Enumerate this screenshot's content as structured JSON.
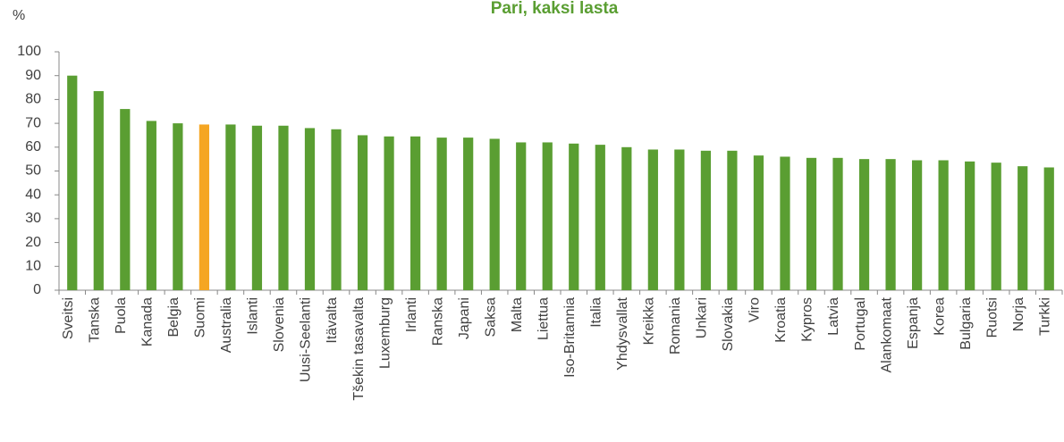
{
  "chart_data": {
    "type": "bar",
    "title": "Pari, kaksi lasta",
    "y_label": "%",
    "categories": [
      "Sveitsi",
      "Tanska",
      "Puola",
      "Kanada",
      "Belgia",
      "Suomi",
      "Australia",
      "Islanti",
      "Slovenia",
      "Uusi-Seelanti",
      "Itävalta",
      "Tšekin tasavalta",
      "Luxemburg",
      "Irlanti",
      "Ranska",
      "Japani",
      "Saksa",
      "Malta",
      "Liettua",
      "Iso-Britannia",
      "Italia",
      "Yhdysvallat",
      "Kreikka",
      "Romania",
      "Unkari",
      "Slovakia",
      "Viro",
      "Kroatia",
      "Kypros",
      "Latvia",
      "Portugal",
      "Alankomaat",
      "Espanja",
      "Korea",
      "Bulgaria",
      "Ruotsi",
      "Norja",
      "Turkki"
    ],
    "values": [
      90,
      83.5,
      76,
      71,
      70,
      69.5,
      69.5,
      69,
      69,
      68,
      67.5,
      65,
      64.5,
      64.5,
      64,
      64,
      63.5,
      62,
      62,
      61.5,
      61,
      60,
      59,
      59,
      58.5,
      58.5,
      56.5,
      56,
      55.5,
      55.5,
      55,
      55,
      54.5,
      54.5,
      54,
      53.5,
      52,
      51.5
    ],
    "color": "#5a9e32",
    "highlight_color": "#f5a623",
    "highlight": [
      "Suomi"
    ],
    "ylim": [
      0,
      100
    ],
    "yticks": [
      0,
      10,
      20,
      30,
      40,
      50,
      60,
      70,
      80,
      90,
      100
    ],
    "grid": false
  }
}
